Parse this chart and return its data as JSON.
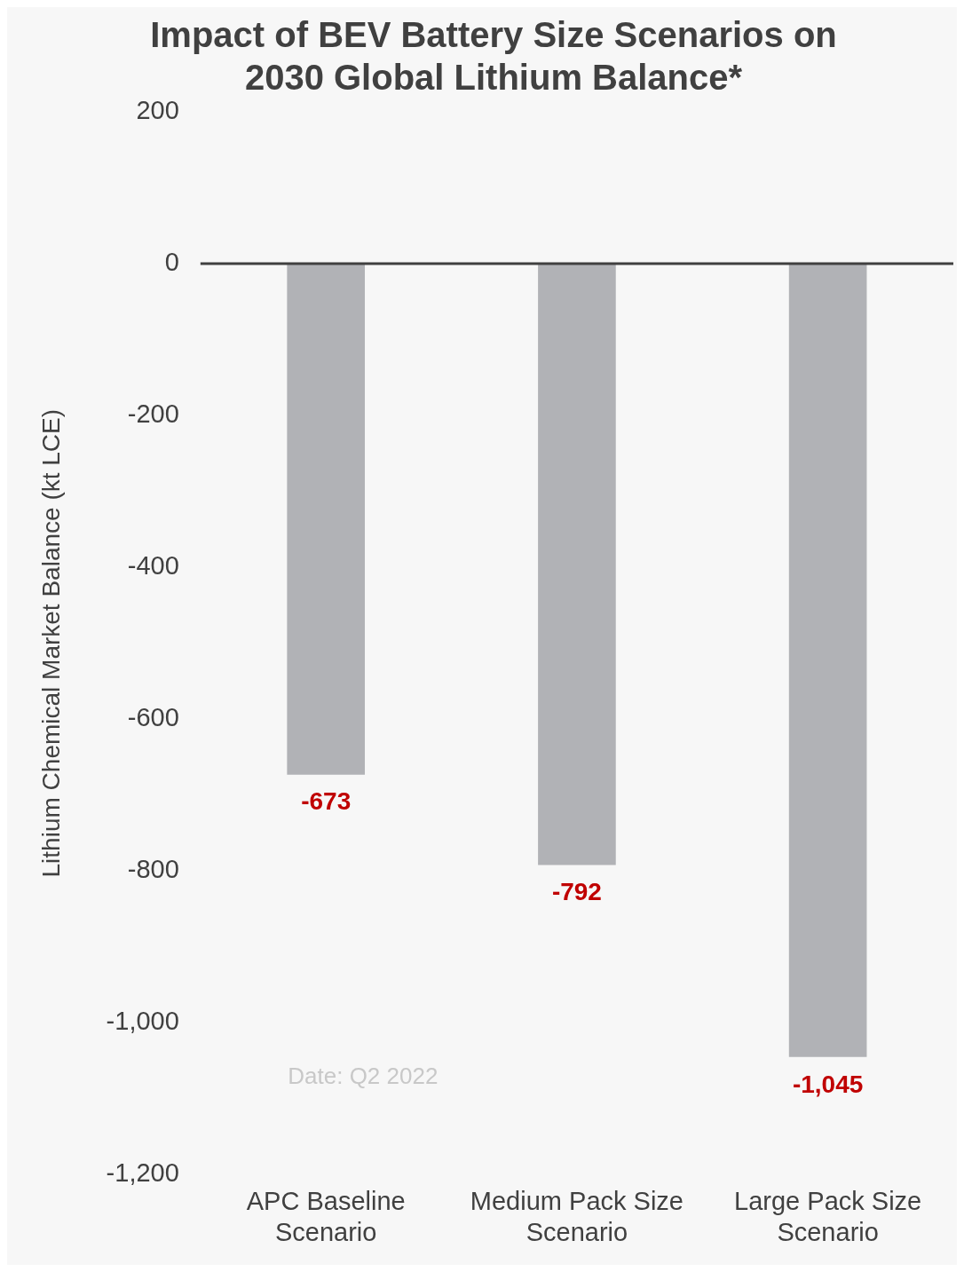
{
  "chart_data": {
    "type": "bar",
    "title": "Impact of BEV Battery Size Scenarios on 2030 Global Lithium Balance*",
    "ylabel": "Lithium Chemical Market Balance (kt LCE)",
    "categories": [
      "APC Baseline Scenario",
      "Medium Pack Size Scenario",
      "Large Pack Size Scenario"
    ],
    "values": [
      -673,
      -792,
      -1045
    ],
    "color": "#b1b2b6",
    "value_labels": [
      "-673",
      "-792",
      "-1,045"
    ],
    "ylim": [
      -1200,
      200
    ],
    "yticks": [
      {
        "value": -1200,
        "label": "-1,200"
      },
      {
        "value": -1000,
        "label": "-1,000"
      },
      -800,
      -600,
      -400,
      -200,
      0,
      200
    ],
    "annotations": [
      "Date: Q2 2022"
    ],
    "ref_lines": [
      {
        "axis": "y",
        "value": 0,
        "color": "#404040"
      }
    ],
    "grid": false,
    "legend": false
  }
}
